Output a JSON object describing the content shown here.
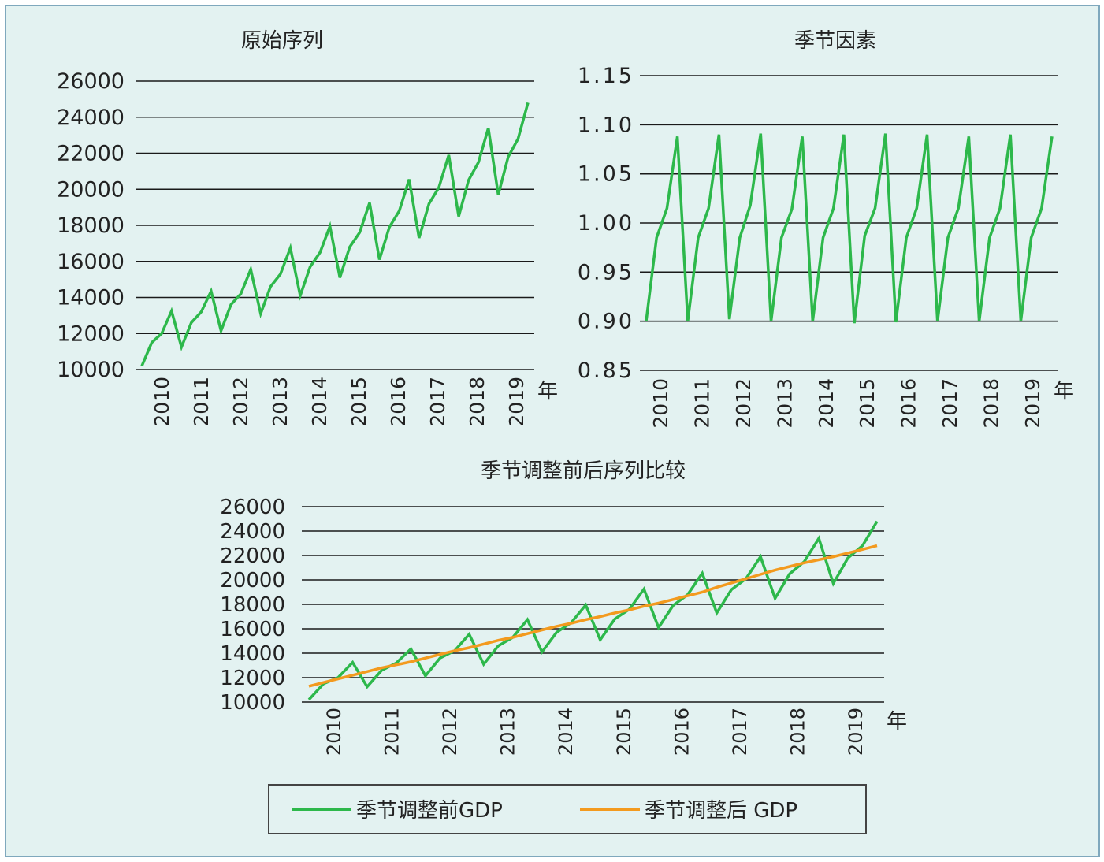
{
  "colors": {
    "before": "#2db84b",
    "after": "#f39a1e",
    "grid": "#1a1a1a",
    "background": "#e3f2f1",
    "frame_border": "#7fa8bd"
  },
  "chart_data": [
    {
      "id": "original",
      "type": "line",
      "title": "原始序列",
      "xunit": "年",
      "x_ticks": [
        "2010",
        "2011",
        "2012",
        "2013",
        "2014",
        "2015",
        "2016",
        "2017",
        "2018",
        "2019"
      ],
      "ylim": [
        10000,
        26000
      ],
      "y_ticks": [
        "10000",
        "12000",
        "14000",
        "16000",
        "18000",
        "20000",
        "22000",
        "24000",
        "26000"
      ],
      "grid": true,
      "series": [
        {
          "color": "#2db84b",
          "values": [
            10200,
            11500,
            12000,
            13250,
            11250,
            12600,
            13200,
            14350,
            12150,
            13600,
            14200,
            15550,
            13100,
            14600,
            15300,
            16750,
            14100,
            15700,
            16500,
            17950,
            15100,
            16800,
            17600,
            19250,
            16100,
            17900,
            18800,
            20550,
            17300,
            19200,
            20100,
            21900,
            18500,
            20500,
            21500,
            23400,
            19700,
            21800,
            22800,
            24800
          ]
        }
      ]
    },
    {
      "id": "seasonal",
      "type": "line",
      "title": "季节因素",
      "xunit": "年",
      "x_ticks": [
        "2010",
        "2011",
        "2012",
        "2013",
        "2014",
        "2015",
        "2016",
        "2017",
        "2018",
        "2019"
      ],
      "ylim": [
        0.85,
        1.15
      ],
      "y_ticks": [
        "0.85",
        "0.90",
        "0.95",
        "1.00",
        "1.05",
        "1.10",
        "1.15"
      ],
      "grid": true,
      "series": [
        {
          "color": "#2db84b",
          "values": [
            0.9,
            0.985,
            1.015,
            1.088,
            0.9,
            0.985,
            1.015,
            1.09,
            0.902,
            0.985,
            1.018,
            1.091,
            0.9,
            0.985,
            1.014,
            1.088,
            0.9,
            0.985,
            1.015,
            1.09,
            0.898,
            0.987,
            1.015,
            1.091,
            0.899,
            0.985,
            1.015,
            1.09,
            0.9,
            0.985,
            1.015,
            1.088,
            0.9,
            0.985,
            1.015,
            1.09,
            0.9,
            0.985,
            1.015,
            1.088
          ]
        }
      ]
    },
    {
      "id": "comparison",
      "type": "line",
      "title": "季节调整前后序列比较",
      "xunit": "年",
      "x_ticks": [
        "2010",
        "2011",
        "2012",
        "2013",
        "2014",
        "2015",
        "2016",
        "2017",
        "2018",
        "2019"
      ],
      "ylim": [
        10000,
        26000
      ],
      "y_ticks": [
        "10000",
        "12000",
        "14000",
        "16000",
        "18000",
        "20000",
        "22000",
        "24000",
        "26000"
      ],
      "grid": true,
      "legend_position": "bottom",
      "series": [
        {
          "name": "季节调整前GDP",
          "color": "#2db84b",
          "values": [
            10200,
            11500,
            12000,
            13250,
            11250,
            12600,
            13200,
            14350,
            12150,
            13600,
            14200,
            15550,
            13100,
            14600,
            15300,
            16750,
            14100,
            15700,
            16500,
            17950,
            15100,
            16800,
            17600,
            19250,
            16100,
            17900,
            18800,
            20550,
            17300,
            19200,
            20100,
            21900,
            18500,
            20500,
            21500,
            23400,
            19700,
            21800,
            22800,
            24800
          ]
        },
        {
          "name": "季节调整后 GDP",
          "color": "#f39a1e",
          "values": [
            11300,
            11600,
            11900,
            12200,
            12500,
            12800,
            13050,
            13300,
            13600,
            13900,
            14200,
            14450,
            14750,
            15050,
            15300,
            15600,
            15900,
            16200,
            16450,
            16750,
            17000,
            17300,
            17550,
            17850,
            18100,
            18400,
            18700,
            19000,
            19400,
            19750,
            20100,
            20450,
            20800,
            21100,
            21400,
            21650,
            21900,
            22200,
            22500,
            22800
          ]
        }
      ]
    }
  ]
}
